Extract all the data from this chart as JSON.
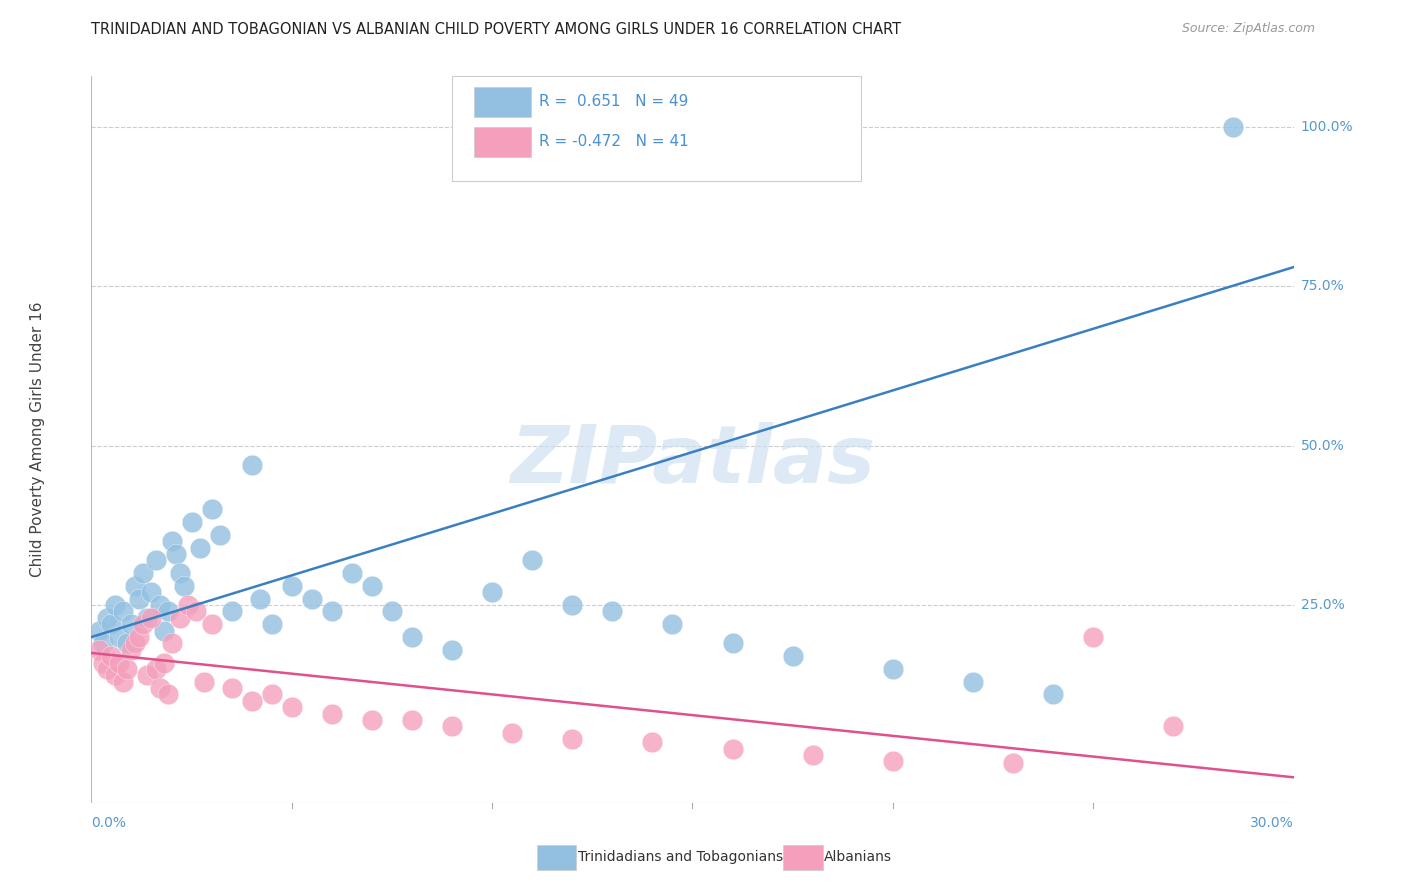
{
  "title": "TRINIDADIAN AND TOBAGONIAN VS ALBANIAN CHILD POVERTY AMONG GIRLS UNDER 16 CORRELATION CHART",
  "source": "Source: ZipAtlas.com",
  "ylabel": "Child Poverty Among Girls Under 16",
  "legend_labels_bottom": [
    "Trinidadians and Tobagonians",
    "Albanians"
  ],
  "blue_color": "#93c0e0",
  "pink_color": "#f4a0bc",
  "blue_line_color": "#3a7fc1",
  "pink_line_color": "#e0508a",
  "watermark": "ZIPatlas",
  "blue_line_y0": 0.2,
  "blue_line_y1": 0.78,
  "pink_line_y0": 0.175,
  "pink_line_y1": -0.02,
  "xmin": 0.0,
  "xmax": 0.3,
  "ymin": -0.06,
  "ymax": 1.08,
  "blue_scatter_x": [
    0.002,
    0.003,
    0.004,
    0.005,
    0.006,
    0.007,
    0.008,
    0.009,
    0.01,
    0.011,
    0.012,
    0.013,
    0.014,
    0.015,
    0.016,
    0.017,
    0.018,
    0.019,
    0.02,
    0.021,
    0.022,
    0.023,
    0.025,
    0.027,
    0.03,
    0.032,
    0.035,
    0.04,
    0.042,
    0.045,
    0.05,
    0.055,
    0.06,
    0.065,
    0.07,
    0.075,
    0.08,
    0.09,
    0.1,
    0.11,
    0.12,
    0.13,
    0.145,
    0.16,
    0.175,
    0.2,
    0.22,
    0.24,
    0.285
  ],
  "blue_scatter_y": [
    0.21,
    0.19,
    0.23,
    0.22,
    0.25,
    0.2,
    0.24,
    0.19,
    0.22,
    0.28,
    0.26,
    0.3,
    0.23,
    0.27,
    0.32,
    0.25,
    0.21,
    0.24,
    0.35,
    0.33,
    0.3,
    0.28,
    0.38,
    0.34,
    0.4,
    0.36,
    0.24,
    0.47,
    0.26,
    0.22,
    0.28,
    0.26,
    0.24,
    0.3,
    0.28,
    0.24,
    0.2,
    0.18,
    0.27,
    0.32,
    0.25,
    0.24,
    0.22,
    0.19,
    0.17,
    0.15,
    0.13,
    0.11,
    1.0
  ],
  "pink_scatter_x": [
    0.002,
    0.003,
    0.004,
    0.005,
    0.006,
    0.007,
    0.008,
    0.009,
    0.01,
    0.011,
    0.012,
    0.013,
    0.014,
    0.015,
    0.016,
    0.017,
    0.018,
    0.019,
    0.02,
    0.022,
    0.024,
    0.026,
    0.028,
    0.03,
    0.035,
    0.04,
    0.045,
    0.05,
    0.06,
    0.07,
    0.08,
    0.09,
    0.105,
    0.12,
    0.14,
    0.16,
    0.18,
    0.2,
    0.23,
    0.25,
    0.27
  ],
  "pink_scatter_y": [
    0.18,
    0.16,
    0.15,
    0.17,
    0.14,
    0.16,
    0.13,
    0.15,
    0.18,
    0.19,
    0.2,
    0.22,
    0.14,
    0.23,
    0.15,
    0.12,
    0.16,
    0.11,
    0.19,
    0.23,
    0.25,
    0.24,
    0.13,
    0.22,
    0.12,
    0.1,
    0.11,
    0.09,
    0.08,
    0.07,
    0.07,
    0.06,
    0.05,
    0.04,
    0.035,
    0.025,
    0.015,
    0.005,
    0.003,
    0.2,
    0.06
  ]
}
